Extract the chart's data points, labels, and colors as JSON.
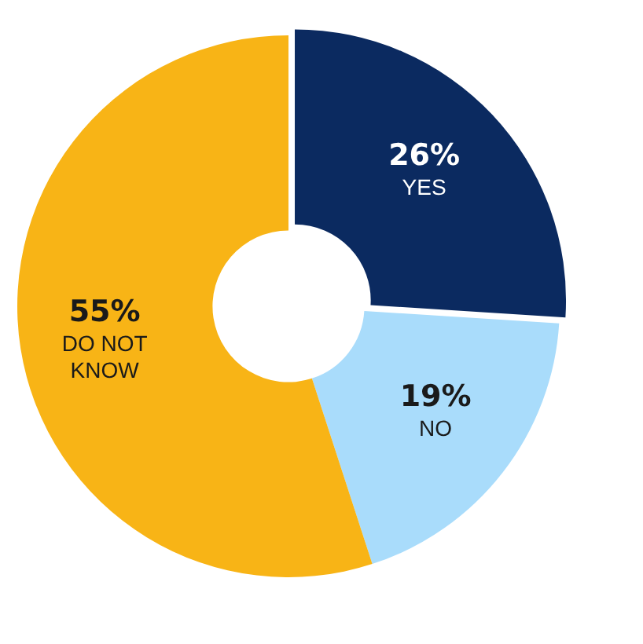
{
  "chart_data": {
    "type": "donut",
    "categories": [
      "YES",
      "NO",
      "DO NOT KNOW"
    ],
    "values": [
      26,
      19,
      55
    ],
    "colors": [
      "#0b2a60",
      "#a9dcfb",
      "#f8b416"
    ],
    "value_labels": [
      "26%",
      "19%",
      "55%"
    ],
    "legend": false
  }
}
